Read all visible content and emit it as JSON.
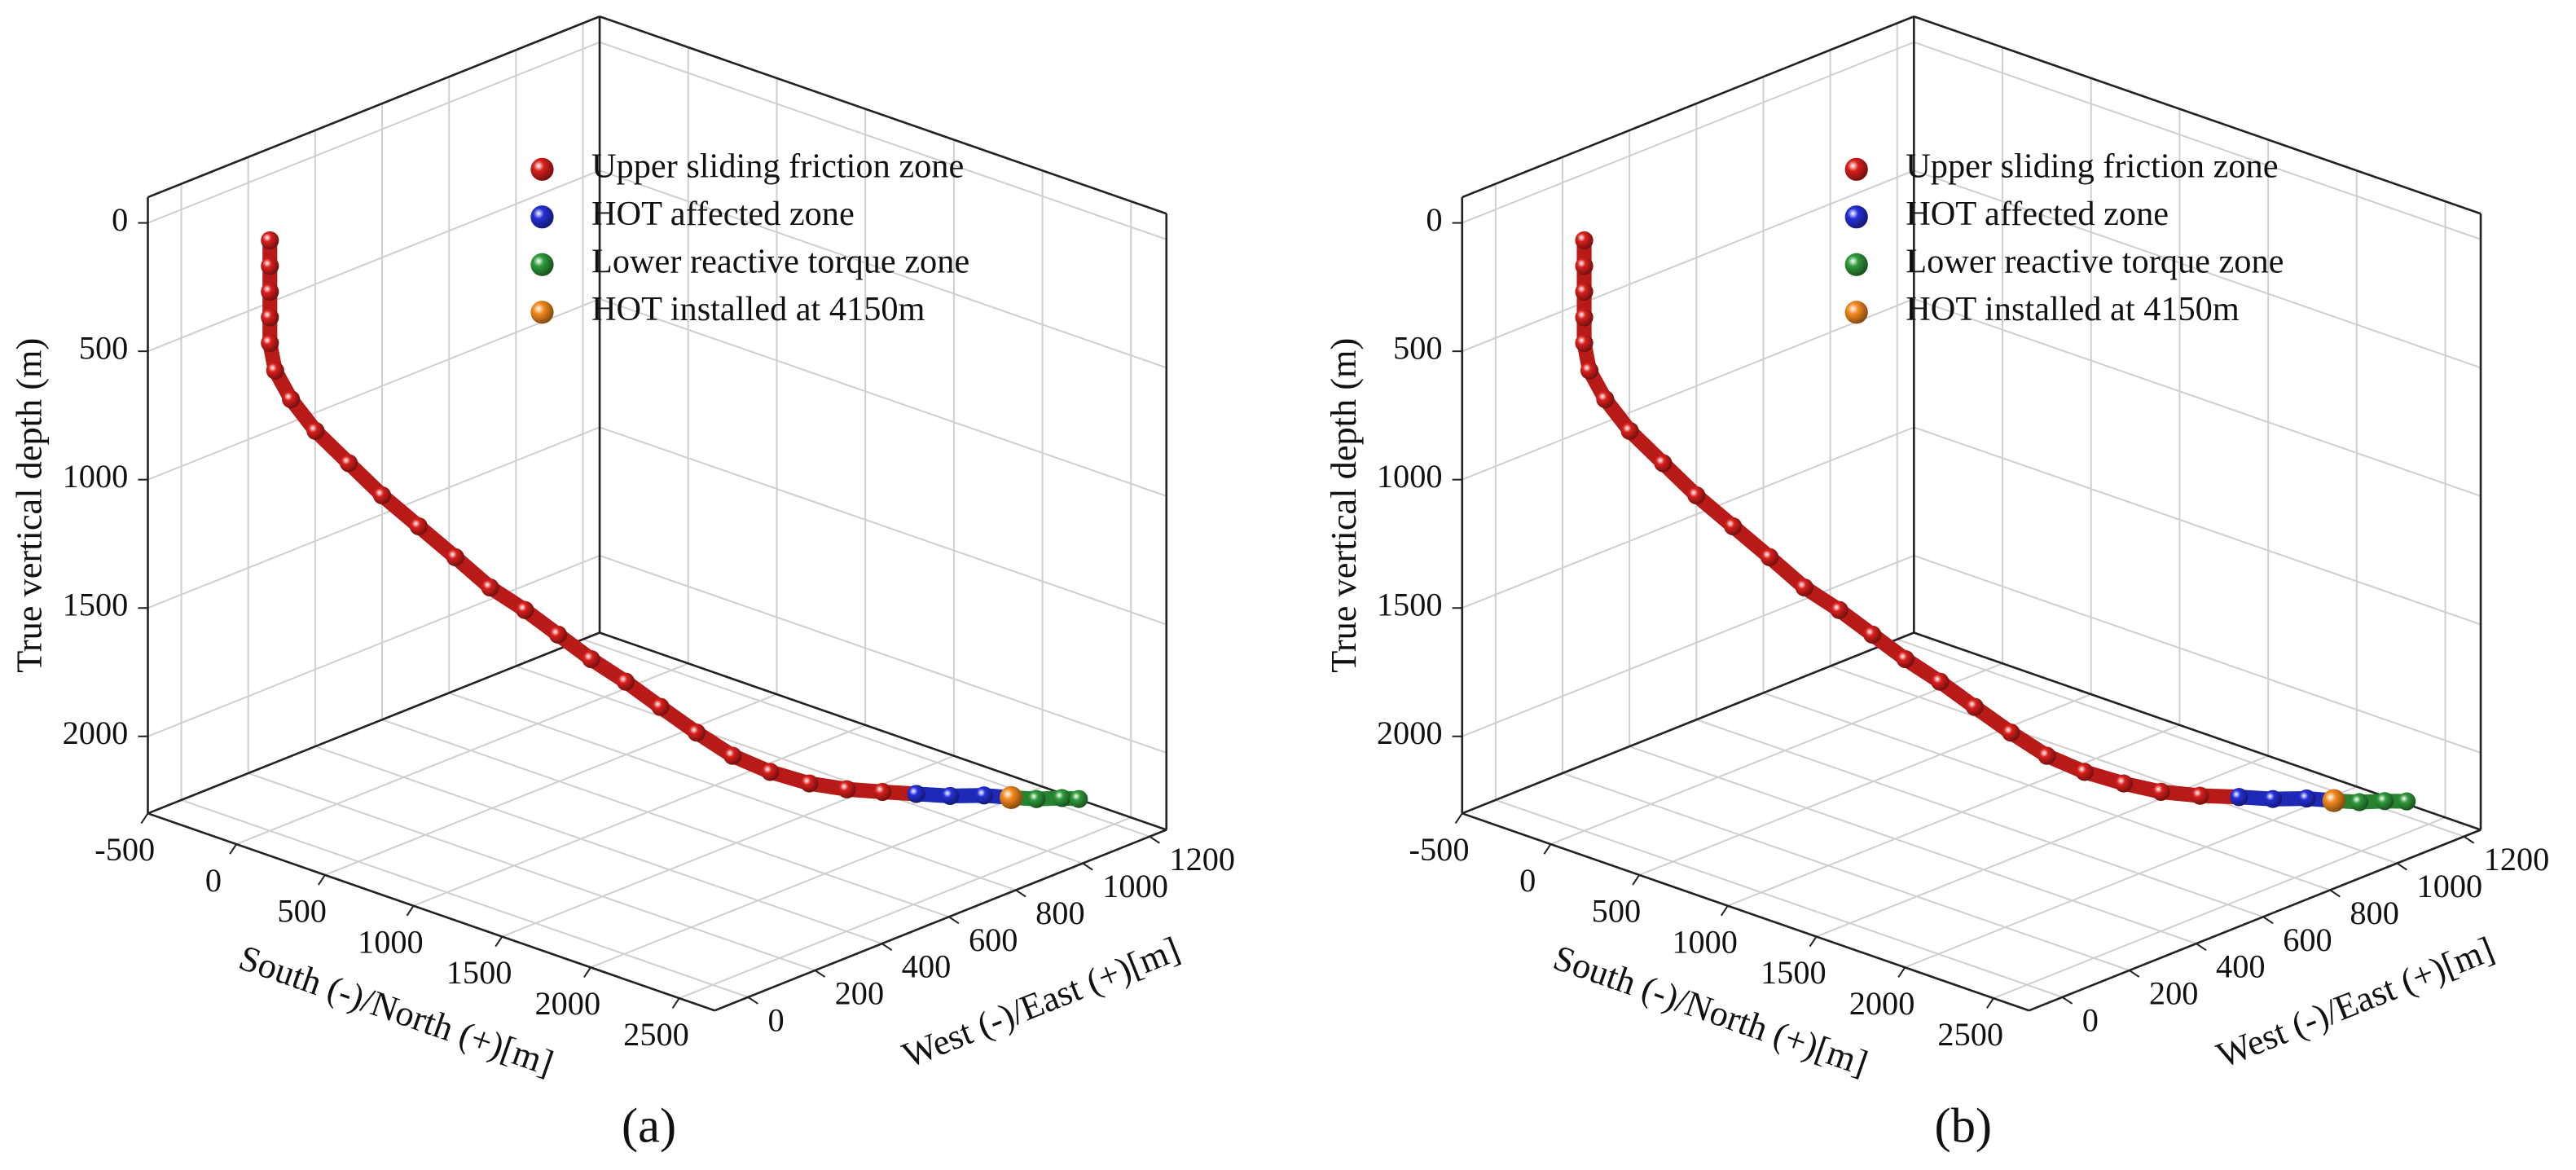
{
  "chart_data": [
    {
      "type": "scatter3d",
      "panel_label": "(a)",
      "x_label": "South (-)/North (+)[m]",
      "y_label": "West (-)/East (+)[m]",
      "z_label": "True vertical depth (m)",
      "xlim": [
        -500,
        2700
      ],
      "ylim": [
        -100,
        1250
      ],
      "zlim": [
        -100,
        2300
      ],
      "z_inverted": true,
      "xticks": [
        -500,
        0,
        500,
        1000,
        1500,
        2000,
        2500
      ],
      "yticks": [
        0,
        200,
        400,
        600,
        800,
        1000,
        1200
      ],
      "zticks": [
        0,
        500,
        1000,
        1500,
        2000
      ],
      "grid": true,
      "legend": "upper right",
      "series": [
        {
          "name": "Upper sliding friction zone",
          "color": "#d91f1c",
          "x": [
            0,
            0,
            0,
            0,
            0,
            30,
            100,
            220,
            370,
            520,
            670,
            820,
            960,
            1100,
            1230,
            1360,
            1480,
            1600,
            1710,
            1800,
            1880,
            1950,
            2010,
            2060,
            2100
          ],
          "y": [
            0,
            0,
            0,
            0,
            0,
            0,
            10,
            20,
            40,
            60,
            90,
            120,
            150,
            180,
            210,
            240,
            280,
            320,
            370,
            430,
            500,
            580,
            660,
            740,
            820
          ],
          "z": [
            0,
            100,
            200,
            300,
            400,
            500,
            600,
            700,
            800,
            900,
            1000,
            1100,
            1200,
            1270,
            1350,
            1430,
            1510,
            1600,
            1700,
            1800,
            1880,
            1950,
            2000,
            2040,
            2080
          ]
        },
        {
          "name": "HOT affected zone",
          "color": "#2430d8",
          "x": [
            2100,
            2140,
            2180,
            2220
          ],
          "y": [
            820,
            900,
            980,
            1040
          ],
          "z": [
            2080,
            2120,
            2150,
            2180
          ]
        },
        {
          "name": "Lower reactive torque zone",
          "color": "#2f9a3a",
          "x": [
            2220,
            2250,
            2280,
            2300
          ],
          "y": [
            1040,
            1100,
            1160,
            1200
          ],
          "z": [
            2180,
            2210,
            2230,
            2250
          ]
        },
        {
          "name": "HOT installed at 4150m",
          "color": "#f58a1e",
          "x": [
            2220
          ],
          "y": [
            1040
          ],
          "z": [
            2180
          ]
        }
      ]
    },
    {
      "type": "scatter3d",
      "panel_label": "(b)",
      "x_label": "South (-)/North (+)[m]",
      "y_label": "West (-)/East (+)[m]",
      "z_label": "True vertical depth (m)",
      "xlim": [
        -500,
        2700
      ],
      "ylim": [
        -100,
        1250
      ],
      "zlim": [
        -100,
        2300
      ],
      "z_inverted": true,
      "xticks": [
        -500,
        0,
        500,
        1000,
        1500,
        2000,
        2500
      ],
      "yticks": [
        0,
        200,
        400,
        600,
        800,
        1000,
        1200
      ],
      "zticks": [
        0,
        500,
        1000,
        1500,
        2000
      ],
      "grid": true,
      "legend": "upper right",
      "series": [
        {
          "name": "Upper sliding friction zone",
          "color": "#d91f1c",
          "x": [
            0,
            0,
            0,
            0,
            0,
            30,
            100,
            220,
            370,
            520,
            670,
            820,
            960,
            1100,
            1230,
            1360,
            1480,
            1600,
            1710,
            1800,
            1880,
            1950,
            2010,
            2060,
            2110
          ],
          "y": [
            0,
            0,
            0,
            0,
            0,
            0,
            10,
            20,
            40,
            60,
            90,
            120,
            150,
            180,
            210,
            240,
            280,
            320,
            370,
            430,
            500,
            580,
            660,
            750,
            840
          ],
          "z": [
            0,
            100,
            200,
            300,
            400,
            500,
            600,
            700,
            800,
            900,
            1000,
            1100,
            1200,
            1270,
            1350,
            1430,
            1510,
            1600,
            1700,
            1800,
            1880,
            1950,
            2010,
            2060,
            2100
          ]
        },
        {
          "name": "HOT affected zone",
          "color": "#2430d8",
          "x": [
            2110,
            2150,
            2190,
            2230
          ],
          "y": [
            840,
            920,
            1000,
            1060
          ],
          "z": [
            2100,
            2140,
            2170,
            2200
          ]
        },
        {
          "name": "Lower reactive torque zone",
          "color": "#2f9a3a",
          "x": [
            2230,
            2260,
            2290,
            2320
          ],
          "y": [
            1060,
            1120,
            1180,
            1230
          ],
          "z": [
            2200,
            2230,
            2250,
            2270
          ]
        },
        {
          "name": "HOT installed at 4150m",
          "color": "#f58a1e",
          "x": [
            2230
          ],
          "y": [
            1060
          ],
          "z": [
            2200
          ]
        }
      ]
    }
  ]
}
